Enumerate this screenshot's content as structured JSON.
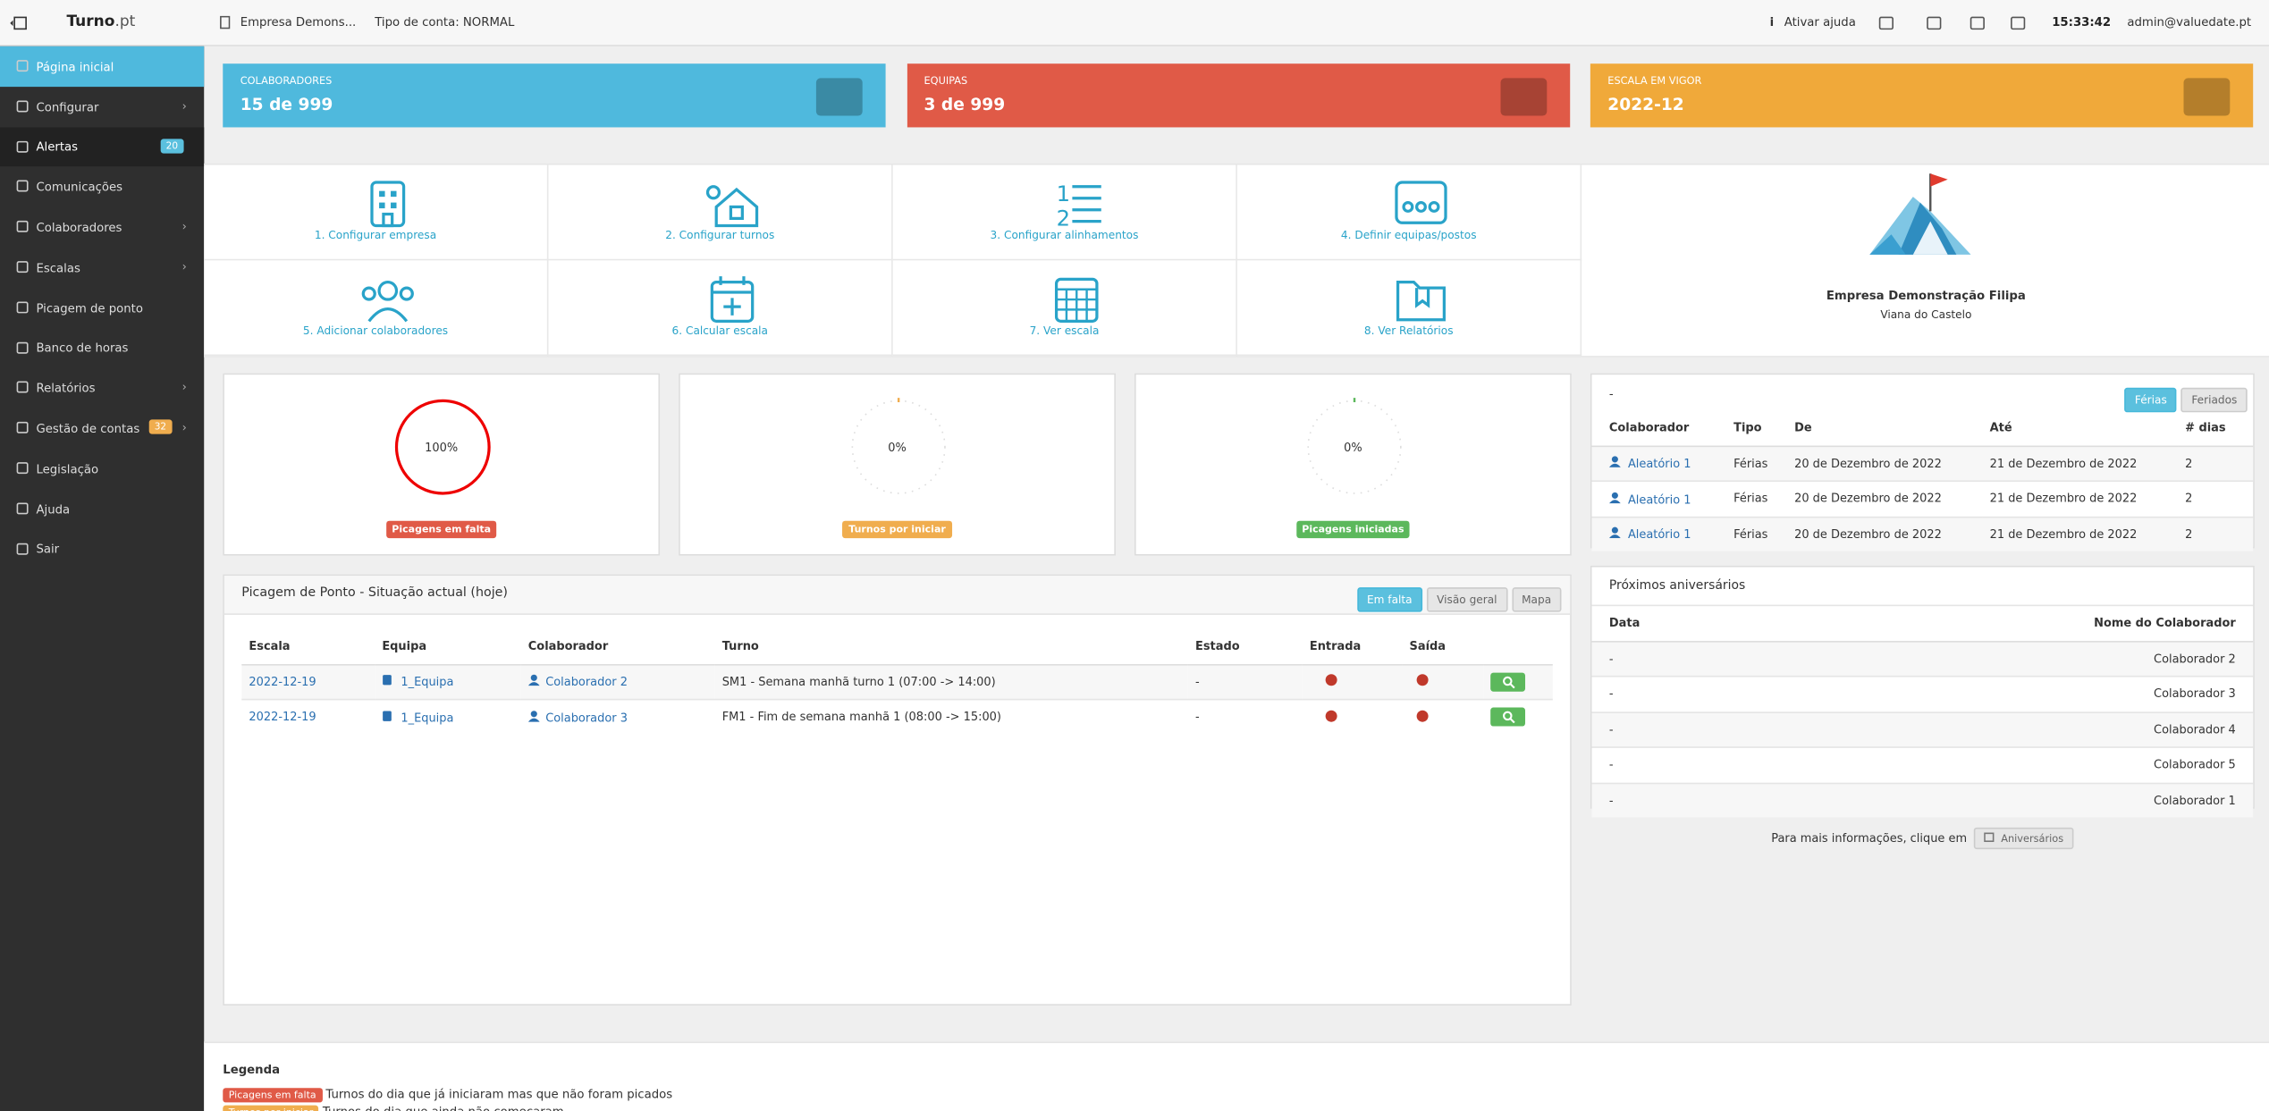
{
  "topbar": {
    "brand": "Turno",
    "brand_suffix": ".pt",
    "company": "Empresa Demons...",
    "account_type": "Tipo de conta: NORMAL",
    "help": "Ativar ajuda",
    "time": "15:33:42",
    "user": "admin@valuedate.pt"
  },
  "sidebar": {
    "items": [
      {
        "label": "Página inicial"
      },
      {
        "label": "Configurar"
      },
      {
        "label": "Alertas",
        "badge": "20"
      },
      {
        "label": "Comunicações"
      },
      {
        "label": "Colaboradores"
      },
      {
        "label": "Escalas"
      },
      {
        "label": "Picagem de ponto"
      },
      {
        "label": "Banco de horas"
      },
      {
        "label": "Relatórios"
      },
      {
        "label": "Gestão de contas",
        "badge": "32"
      },
      {
        "label": "Legislação"
      },
      {
        "label": "Ajuda"
      },
      {
        "label": "Sair"
      }
    ]
  },
  "stats": [
    {
      "label": "COLABORADORES",
      "value": "15 de 999"
    },
    {
      "label": "EQUIPAS",
      "value": "3 de 999"
    },
    {
      "label": "ESCALA EM VIGOR",
      "value": "2022-12"
    }
  ],
  "shortcuts": [
    "1. Configurar empresa",
    "2. Configurar turnos",
    "3. Configurar alinhamentos",
    "4. Definir equipas/postos",
    "5. Adicionar colaboradores",
    "6. Calcular escala",
    "7. Ver escala",
    "8. Ver Relatórios"
  ],
  "company": {
    "name": "Empresa Demonstração Filipa",
    "city": "Viana do Castelo"
  },
  "gauges": [
    {
      "value": "100%",
      "label": "Picagens em falta"
    },
    {
      "value": "0%",
      "label": "Turnos por iniciar"
    },
    {
      "value": "0%",
      "label": "Picagens iniciadas"
    }
  ],
  "vacations": {
    "title": "-",
    "buttons": [
      "Férias",
      "Feriados"
    ],
    "columns": [
      "Colaborador",
      "Tipo",
      "De",
      "Até",
      "# dias"
    ],
    "rows": [
      [
        "Aleatório 1",
        "Férias",
        "20 de Dezembro de 2022",
        "21 de Dezembro de 2022",
        "2"
      ],
      [
        "Aleatório 1",
        "Férias",
        "20 de Dezembro de 2022",
        "21 de Dezembro de 2022",
        "2"
      ],
      [
        "Aleatório 1",
        "Férias",
        "20 de Dezembro de 2022",
        "21 de Dezembro de 2022",
        "2"
      ]
    ]
  },
  "punch": {
    "title": "Picagem de Ponto - Situação actual (hoje)",
    "buttons": [
      "Em falta",
      "Visão geral",
      "Mapa"
    ],
    "columns": [
      "Escala",
      "Equipa",
      "Colaborador",
      "Turno",
      "Estado",
      "Entrada",
      "Saída"
    ],
    "rows": [
      [
        "2022-12-19",
        "1_Equipa",
        "Colaborador 2",
        "SM1 - Semana manhã turno 1 (07:00 -> 14:00)",
        "-"
      ],
      [
        "2022-12-19",
        "1_Equipa",
        "Colaborador 3",
        "FM1 - Fim de semana manhã 1 (08:00 -> 15:00)",
        "-"
      ]
    ]
  },
  "birthdays": {
    "title": "Próximos aniversários",
    "columns": [
      "Data",
      "Nome do Colaborador"
    ],
    "rows": [
      [
        "-",
        "Colaborador 2"
      ],
      [
        "-",
        "Colaborador 3"
      ],
      [
        "-",
        "Colaborador 4"
      ],
      [
        "-",
        "Colaborador 5"
      ],
      [
        "-",
        "Colaborador 1"
      ]
    ],
    "footer": "Para mais informações, clique em",
    "button": "Aniversários"
  },
  "legend": {
    "title": "Legenda",
    "items": [
      {
        "badge": "Picagens em falta",
        "text": "Turnos do dia que já iniciaram mas que não foram picados"
      },
      {
        "badge": "Turnos por iniciar",
        "text": "Turnos do dia que ainda não começaram"
      }
    ]
  }
}
